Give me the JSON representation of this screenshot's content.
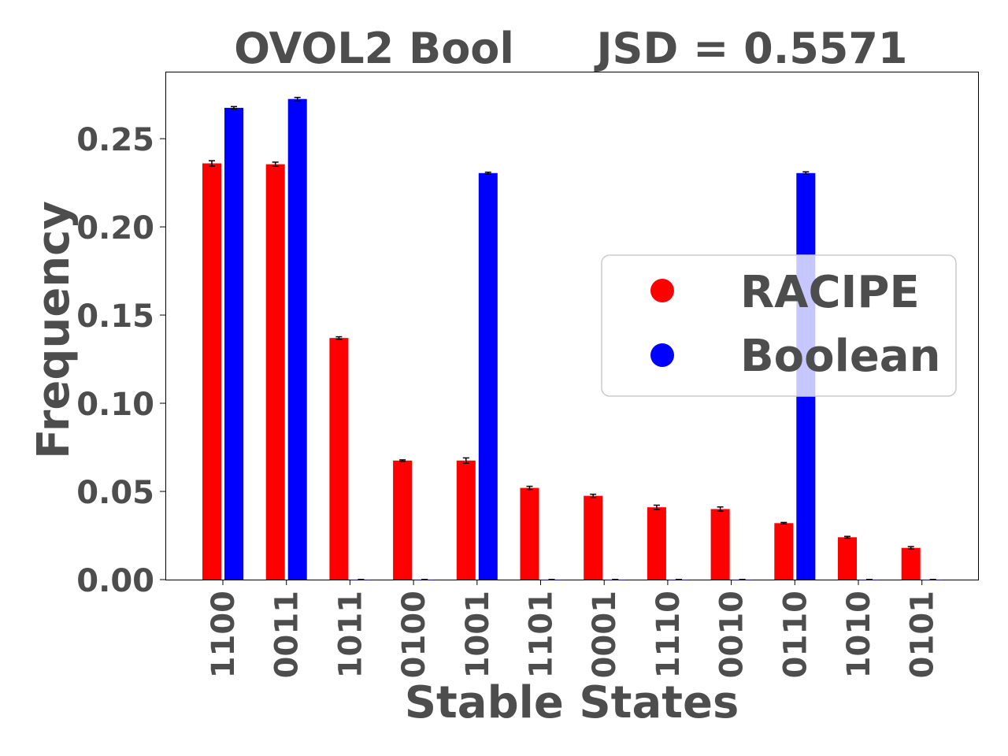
{
  "chart_data": {
    "type": "bar",
    "title": "OVOL2 Bool",
    "subtitle": "JSD = 0.5571",
    "xlabel": "Stable States",
    "ylabel": "Frequency",
    "categories": [
      "1100",
      "0011",
      "1011",
      "0100",
      "1001",
      "1101",
      "0001",
      "1110",
      "0010",
      "0110",
      "1010",
      "0101"
    ],
    "ylim": [
      0,
      0.288
    ],
    "yticks": [
      "0.00",
      "0.05",
      "0.10",
      "0.15",
      "0.20",
      "0.25"
    ],
    "grid": false,
    "legend_position": "center-right",
    "series": [
      {
        "name": "RACIPE",
        "color": "#ff0000",
        "values": [
          0.236,
          0.2355,
          0.137,
          0.0675,
          0.0675,
          0.052,
          0.0475,
          0.041,
          0.04,
          0.032,
          0.024,
          0.018
        ],
        "errors": [
          0.0015,
          0.0012,
          0.0007,
          0.0004,
          0.0015,
          0.0009,
          0.0009,
          0.0012,
          0.0012,
          0.0004,
          0.0005,
          0.0007
        ]
      },
      {
        "name": "Boolean",
        "color": "#0000ff",
        "values": [
          0.2675,
          0.2725,
          0,
          0,
          0.2305,
          0,
          0,
          0,
          0,
          0.2305,
          0,
          0
        ],
        "errors": [
          0.0007,
          0.0009,
          0,
          0,
          0.0005,
          0,
          0,
          0,
          0,
          0.0007,
          0,
          0
        ]
      }
    ]
  }
}
